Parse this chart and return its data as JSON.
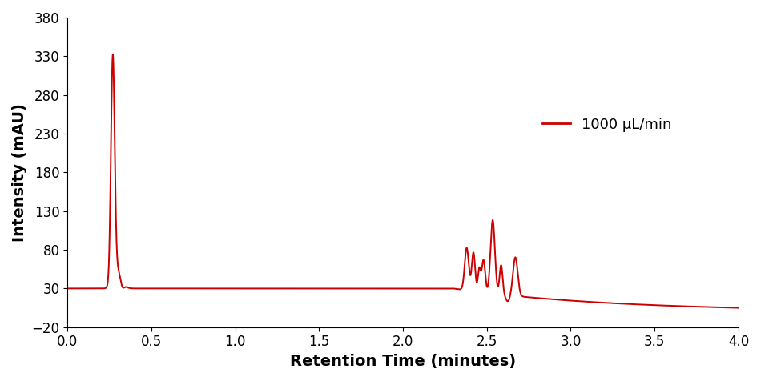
{
  "line_color": "#cc0000",
  "line_width": 1.4,
  "xlabel": "Retention Time (minutes)",
  "ylabel": "Intensity (mAU)",
  "legend_label": "1000 μL/min",
  "xlim": [
    0.0,
    4.0
  ],
  "ylim": [
    -20,
    380
  ],
  "yticks": [
    -20,
    30,
    80,
    130,
    180,
    230,
    280,
    330,
    380
  ],
  "xticks": [
    0.0,
    0.5,
    1.0,
    1.5,
    2.0,
    2.5,
    3.0,
    3.5,
    4.0
  ],
  "background_color": "#ffffff",
  "axis_fontsize": 14,
  "tick_fontsize": 12,
  "legend_fontsize": 13
}
